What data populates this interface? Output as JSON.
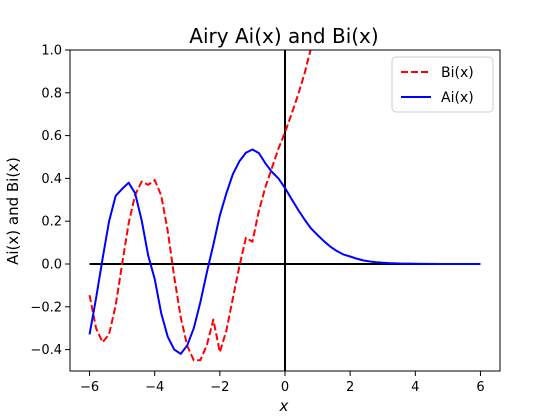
{
  "chart_data": {
    "type": "line",
    "title": "Airy Ai(x) and Bi(x)",
    "xlabel": "x",
    "ylabel": "Ai(x) and Bi(x)",
    "xlim": [
      -6.6,
      6.6
    ],
    "ylim": [
      -0.5,
      1.0
    ],
    "xticks": [
      -6,
      -4,
      -2,
      0,
      2,
      4,
      6
    ],
    "xtick_labels": [
      "−6",
      "−4",
      "−2",
      "0",
      "2",
      "4",
      "6"
    ],
    "yticks": [
      -0.4,
      -0.2,
      0.0,
      0.2,
      0.4,
      0.6,
      0.8,
      1.0
    ],
    "ytick_labels": [
      "−0.4",
      "−0.2",
      "0.0",
      "0.2",
      "0.4",
      "0.6",
      "0.8",
      "1.0"
    ],
    "grid": false,
    "legend_position": "top-right",
    "reference_lines": {
      "horizontal": {
        "y": 0,
        "x_from": -6,
        "x_to": 6,
        "color": "#000000"
      },
      "vertical": {
        "x": 0,
        "color": "#000000"
      }
    },
    "series": [
      {
        "name": "Bi(x)",
        "color": "#ff0000",
        "style": "dashed",
        "x": [
          -6.0,
          -5.8,
          -5.6,
          -5.4,
          -5.2,
          -5.0,
          -4.8,
          -4.6,
          -4.4,
          -4.2,
          -4.0,
          -3.8,
          -3.6,
          -3.4,
          -3.2,
          -3.0,
          -2.8,
          -2.6,
          -2.4,
          -2.2,
          -2.0,
          -1.8,
          -1.6,
          -1.4,
          -1.2,
          -1.0,
          -0.8,
          -0.6,
          -0.4,
          -0.2,
          0.0,
          0.2,
          0.4,
          0.6,
          0.8
        ],
        "y": [
          -0.146,
          -0.3,
          -0.366,
          -0.328,
          -0.195,
          -0.0,
          0.19,
          0.323,
          0.385,
          0.37,
          0.392,
          0.321,
          0.154,
          -0.06,
          -0.25,
          -0.383,
          -0.45,
          -0.45,
          -0.38,
          -0.26,
          -0.412,
          -0.311,
          -0.16,
          -0.01,
          0.123,
          0.104,
          0.25,
          0.36,
          0.45,
          0.54,
          0.615,
          0.7,
          0.79,
          0.89,
          1.01
        ]
      },
      {
        "name": "Ai(x)",
        "color": "#0000ff",
        "style": "solid",
        "x": [
          -6.0,
          -5.8,
          -5.6,
          -5.4,
          -5.2,
          -5.0,
          -4.8,
          -4.6,
          -4.4,
          -4.2,
          -4.0,
          -3.8,
          -3.6,
          -3.4,
          -3.2,
          -3.0,
          -2.8,
          -2.6,
          -2.4,
          -2.2,
          -2.0,
          -1.8,
          -1.6,
          -1.4,
          -1.2,
          -1.0,
          -0.8,
          -0.6,
          -0.4,
          -0.2,
          0.0,
          0.2,
          0.4,
          0.6,
          0.8,
          1.0,
          1.2,
          1.4,
          1.6,
          1.8,
          2.0,
          2.2,
          2.4,
          2.6,
          2.8,
          3.0,
          3.2,
          3.4,
          3.6,
          3.8,
          4.0,
          4.4,
          4.8,
          5.2,
          5.6,
          6.0
        ],
        "y": [
          -0.329,
          -0.16,
          0.025,
          0.2,
          0.318,
          0.351,
          0.38,
          0.33,
          0.204,
          0.04,
          -0.07,
          -0.23,
          -0.34,
          -0.4,
          -0.42,
          -0.38,
          -0.3,
          -0.18,
          -0.04,
          0.09,
          0.227,
          0.33,
          0.42,
          0.48,
          0.52,
          0.535,
          0.518,
          0.47,
          0.43,
          0.4,
          0.355,
          0.304,
          0.254,
          0.208,
          0.166,
          0.135,
          0.106,
          0.08,
          0.06,
          0.044,
          0.035,
          0.025,
          0.017,
          0.012,
          0.008,
          0.006,
          0.004,
          0.003,
          0.002,
          0.0015,
          0.001,
          0.0005,
          0.0002,
          0.0001,
          0.0,
          0.0
        ]
      }
    ]
  }
}
